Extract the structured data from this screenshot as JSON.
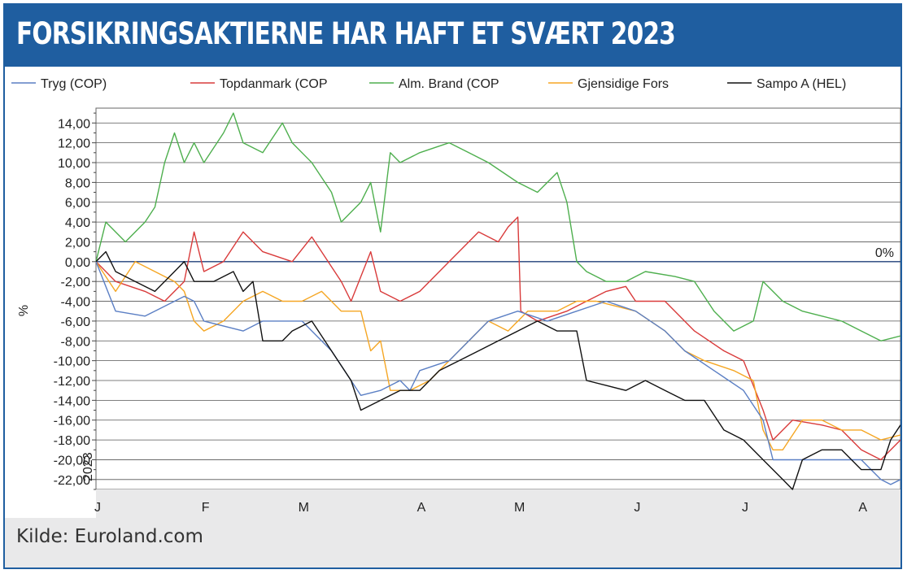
{
  "header": {
    "title": "FORSIKRINGSAKTIERNE HAR HAFT ET SVÆRT 2023"
  },
  "source": "Kilde: Euroland.com",
  "colors": {
    "header": "#1f5ea0",
    "zero_line": "#1f3f7a",
    "grid": "#555555"
  },
  "chart_data": {
    "type": "line",
    "ylabel": "%",
    "year_label": "2023",
    "zero_label": "0%",
    "ylim": [
      -23,
      15.5
    ],
    "yticks": [
      14,
      12,
      10,
      8,
      6,
      4,
      2,
      0,
      -2,
      -4,
      -6,
      -8,
      -10,
      -12,
      -14,
      -16,
      -18,
      -20,
      -22
    ],
    "ytick_labels": [
      "14,00",
      "12,00",
      "10,00",
      "8,00",
      "6,00",
      "4,00",
      "2,00",
      "0,00",
      "-2,00",
      "-4,00",
      "-6,00",
      "-8,00",
      "-10,00",
      "-12,00",
      "-14,00",
      "-16,00",
      "-18,00",
      "-20,00",
      "-22,00"
    ],
    "xlim": [
      0,
      8.2
    ],
    "xticks": [
      {
        "label": "J",
        "pos": 0
      },
      {
        "label": "F",
        "pos": 1.1
      },
      {
        "label": "M",
        "pos": 2.1
      },
      {
        "label": "A",
        "pos": 3.3
      },
      {
        "label": "M",
        "pos": 4.3
      },
      {
        "label": "J",
        "pos": 5.5
      },
      {
        "label": "J",
        "pos": 6.6
      },
      {
        "label": "A",
        "pos": 7.8
      }
    ],
    "legend_position": "top",
    "series": [
      {
        "name": "Tryg (COP)",
        "color": "#5b7fc4",
        "points": [
          [
            0,
            0
          ],
          [
            0.2,
            -5
          ],
          [
            0.5,
            -5.5
          ],
          [
            0.9,
            -3.5
          ],
          [
            1.0,
            -4
          ],
          [
            1.1,
            -6
          ],
          [
            1.5,
            -7
          ],
          [
            1.7,
            -6
          ],
          [
            2.1,
            -6
          ],
          [
            2.4,
            -9
          ],
          [
            2.7,
            -13.5
          ],
          [
            2.9,
            -13
          ],
          [
            3.1,
            -12
          ],
          [
            3.2,
            -13
          ],
          [
            3.3,
            -11
          ],
          [
            3.6,
            -10
          ],
          [
            4.0,
            -6
          ],
          [
            4.3,
            -5
          ],
          [
            4.6,
            -6
          ],
          [
            4.9,
            -5
          ],
          [
            5.2,
            -4
          ],
          [
            5.5,
            -5
          ],
          [
            5.8,
            -7
          ],
          [
            6.0,
            -9
          ],
          [
            6.3,
            -11
          ],
          [
            6.6,
            -13
          ],
          [
            6.8,
            -16
          ],
          [
            6.9,
            -20
          ],
          [
            7.1,
            -20
          ],
          [
            7.4,
            -20
          ],
          [
            7.6,
            -20
          ],
          [
            7.8,
            -20
          ],
          [
            7.9,
            -21
          ],
          [
            8.0,
            -22
          ],
          [
            8.1,
            -22.5
          ],
          [
            8.2,
            -22
          ]
        ]
      },
      {
        "name": "Topdanmark (COP",
        "color": "#d93b3b",
        "points": [
          [
            0,
            0
          ],
          [
            0.2,
            -2
          ],
          [
            0.5,
            -3
          ],
          [
            0.7,
            -4
          ],
          [
            0.9,
            -2
          ],
          [
            1.0,
            3
          ],
          [
            1.1,
            -1
          ],
          [
            1.3,
            0
          ],
          [
            1.5,
            3
          ],
          [
            1.7,
            1
          ],
          [
            2.0,
            0
          ],
          [
            2.2,
            2.5
          ],
          [
            2.5,
            -2
          ],
          [
            2.6,
            -4
          ],
          [
            2.8,
            1
          ],
          [
            2.9,
            -3
          ],
          [
            3.1,
            -4
          ],
          [
            3.3,
            -3
          ],
          [
            3.6,
            0
          ],
          [
            3.9,
            3
          ],
          [
            4.1,
            2
          ],
          [
            4.2,
            3.5
          ],
          [
            4.3,
            4.5
          ],
          [
            4.33,
            -5
          ],
          [
            4.5,
            -6
          ],
          [
            4.8,
            -5
          ],
          [
            5.0,
            -4
          ],
          [
            5.2,
            -3
          ],
          [
            5.4,
            -2.5
          ],
          [
            5.5,
            -4
          ],
          [
            5.8,
            -4
          ],
          [
            6.1,
            -7
          ],
          [
            6.4,
            -9
          ],
          [
            6.6,
            -10
          ],
          [
            6.8,
            -15
          ],
          [
            6.9,
            -18
          ],
          [
            7.1,
            -16
          ],
          [
            7.4,
            -16.5
          ],
          [
            7.6,
            -17
          ],
          [
            7.8,
            -19
          ],
          [
            8.0,
            -20
          ],
          [
            8.2,
            -18
          ]
        ]
      },
      {
        "name": "Alm. Brand (COP",
        "color": "#4eaf4e",
        "points": [
          [
            0,
            0
          ],
          [
            0.1,
            4
          ],
          [
            0.3,
            2
          ],
          [
            0.5,
            4
          ],
          [
            0.6,
            5.5
          ],
          [
            0.7,
            10
          ],
          [
            0.8,
            13
          ],
          [
            0.9,
            10
          ],
          [
            1.0,
            12
          ],
          [
            1.1,
            10
          ],
          [
            1.3,
            13
          ],
          [
            1.4,
            15
          ],
          [
            1.5,
            12
          ],
          [
            1.7,
            11
          ],
          [
            1.9,
            14
          ],
          [
            2.0,
            12
          ],
          [
            2.2,
            10
          ],
          [
            2.4,
            7
          ],
          [
            2.5,
            4
          ],
          [
            2.7,
            6
          ],
          [
            2.8,
            8
          ],
          [
            2.9,
            3
          ],
          [
            3.0,
            11
          ],
          [
            3.1,
            10
          ],
          [
            3.3,
            11
          ],
          [
            3.6,
            12
          ],
          [
            3.8,
            11
          ],
          [
            4.0,
            10
          ],
          [
            4.3,
            8
          ],
          [
            4.5,
            7
          ],
          [
            4.7,
            9
          ],
          [
            4.8,
            6
          ],
          [
            4.9,
            0
          ],
          [
            5.0,
            -1
          ],
          [
            5.2,
            -2
          ],
          [
            5.4,
            -2
          ],
          [
            5.6,
            -1
          ],
          [
            5.9,
            -1.5
          ],
          [
            6.1,
            -2
          ],
          [
            6.3,
            -5
          ],
          [
            6.5,
            -7
          ],
          [
            6.7,
            -6
          ],
          [
            6.8,
            -2
          ],
          [
            7.0,
            -4
          ],
          [
            7.2,
            -5
          ],
          [
            7.4,
            -5.5
          ],
          [
            7.6,
            -6
          ],
          [
            7.8,
            -7
          ],
          [
            8.0,
            -8
          ],
          [
            8.2,
            -7.5
          ]
        ]
      },
      {
        "name": "Gjensidige Fors",
        "color": "#f5a623",
        "points": [
          [
            0,
            0
          ],
          [
            0.2,
            -3
          ],
          [
            0.4,
            0
          ],
          [
            0.6,
            -1
          ],
          [
            0.8,
            -2
          ],
          [
            0.9,
            -3
          ],
          [
            1.0,
            -6
          ],
          [
            1.1,
            -7
          ],
          [
            1.3,
            -6
          ],
          [
            1.5,
            -4
          ],
          [
            1.7,
            -3
          ],
          [
            1.9,
            -4
          ],
          [
            2.1,
            -4
          ],
          [
            2.3,
            -3
          ],
          [
            2.5,
            -5
          ],
          [
            2.7,
            -5
          ],
          [
            2.8,
            -9
          ],
          [
            2.9,
            -8
          ],
          [
            3.0,
            -13
          ],
          [
            3.2,
            -13
          ],
          [
            3.4,
            -12
          ],
          [
            3.6,
            -10
          ],
          [
            3.8,
            -8
          ],
          [
            4.0,
            -6
          ],
          [
            4.2,
            -7
          ],
          [
            4.4,
            -5
          ],
          [
            4.7,
            -5
          ],
          [
            4.9,
            -4
          ],
          [
            5.1,
            -4
          ],
          [
            5.3,
            -4.5
          ],
          [
            5.5,
            -5
          ],
          [
            5.8,
            -7
          ],
          [
            6.0,
            -9
          ],
          [
            6.2,
            -10
          ],
          [
            6.5,
            -11
          ],
          [
            6.7,
            -12
          ],
          [
            6.8,
            -17
          ],
          [
            6.9,
            -19
          ],
          [
            7.0,
            -19
          ],
          [
            7.2,
            -16
          ],
          [
            7.4,
            -16
          ],
          [
            7.6,
            -17
          ],
          [
            7.8,
            -17
          ],
          [
            8.0,
            -18
          ],
          [
            8.2,
            -17.5
          ]
        ]
      },
      {
        "name": "Sampo A (HEL)",
        "color": "#111111",
        "points": [
          [
            0,
            0
          ],
          [
            0.1,
            1
          ],
          [
            0.2,
            -1
          ],
          [
            0.4,
            -2
          ],
          [
            0.6,
            -3
          ],
          [
            0.8,
            -1
          ],
          [
            0.9,
            0
          ],
          [
            1.0,
            -2
          ],
          [
            1.2,
            -2
          ],
          [
            1.4,
            -1
          ],
          [
            1.5,
            -3
          ],
          [
            1.6,
            -2
          ],
          [
            1.7,
            -8
          ],
          [
            1.9,
            -8
          ],
          [
            2.0,
            -7
          ],
          [
            2.2,
            -6
          ],
          [
            2.4,
            -9
          ],
          [
            2.6,
            -12
          ],
          [
            2.7,
            -15
          ],
          [
            2.9,
            -14
          ],
          [
            3.1,
            -13
          ],
          [
            3.3,
            -13
          ],
          [
            3.5,
            -11
          ],
          [
            3.7,
            -10
          ],
          [
            3.9,
            -9
          ],
          [
            4.1,
            -8
          ],
          [
            4.3,
            -7
          ],
          [
            4.5,
            -6
          ],
          [
            4.7,
            -7
          ],
          [
            4.9,
            -7
          ],
          [
            5.0,
            -12
          ],
          [
            5.2,
            -12.5
          ],
          [
            5.4,
            -13
          ],
          [
            5.6,
            -12
          ],
          [
            5.8,
            -13
          ],
          [
            6.0,
            -14
          ],
          [
            6.2,
            -14
          ],
          [
            6.4,
            -17
          ],
          [
            6.6,
            -18
          ],
          [
            6.8,
            -20
          ],
          [
            6.9,
            -21
          ],
          [
            7.0,
            -22
          ],
          [
            7.1,
            -23
          ],
          [
            7.2,
            -20
          ],
          [
            7.4,
            -19
          ],
          [
            7.6,
            -19
          ],
          [
            7.8,
            -21
          ],
          [
            8.0,
            -21
          ],
          [
            8.1,
            -18
          ],
          [
            8.2,
            -16.5
          ]
        ]
      }
    ]
  }
}
